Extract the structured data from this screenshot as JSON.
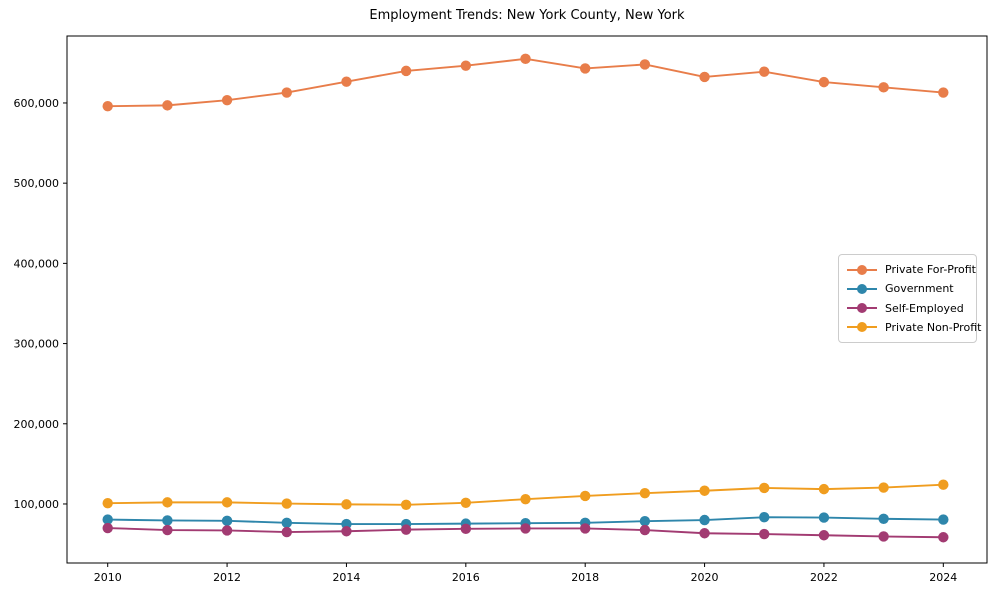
{
  "chart_data": {
    "type": "line",
    "title": "Employment Trends: New York County, New York",
    "xlabel": "",
    "ylabel": "",
    "x": [
      2010,
      2011,
      2012,
      2013,
      2014,
      2015,
      2016,
      2017,
      2018,
      2019,
      2020,
      2021,
      2022,
      2023,
      2024
    ],
    "series": [
      {
        "name": "Private For-Profit",
        "color": "#E87D4A",
        "values": [
          596000,
          597000,
          603500,
          613000,
          626500,
          640000,
          646500,
          655000,
          643000,
          648000,
          632500,
          639000,
          626000,
          619500,
          613000
        ]
      },
      {
        "name": "Government",
        "color": "#2E86AB",
        "values": [
          80500,
          79500,
          79000,
          76500,
          75000,
          75000,
          75500,
          76000,
          76500,
          78500,
          80000,
          83500,
          83000,
          81500,
          80500
        ]
      },
      {
        "name": "Self-Employed",
        "color": "#A23B72",
        "values": [
          70000,
          67500,
          67000,
          65000,
          66000,
          68000,
          69000,
          69500,
          69500,
          67500,
          63500,
          62500,
          61000,
          59500,
          58500
        ]
      },
      {
        "name": "Private Non-Profit",
        "color": "#F09D1F",
        "values": [
          101000,
          102000,
          102000,
          100500,
          99500,
          99000,
          101500,
          106000,
          110000,
          113500,
          116500,
          120000,
          118500,
          120500,
          124000
        ]
      }
    ],
    "x_ticks": [
      2010,
      2012,
      2014,
      2016,
      2018,
      2020,
      2022,
      2024
    ],
    "y_ticks": [
      100000,
      200000,
      300000,
      400000,
      500000,
      600000
    ],
    "xlim": [
      2009.318,
      2024.732
    ],
    "ylim": [
      26400,
      683500
    ],
    "grid": false,
    "legend_position": "center-right",
    "marker": "circle",
    "axis_color": "#000000"
  },
  "legend": {
    "items": [
      {
        "label": "Private For-Profit"
      },
      {
        "label": "Government"
      },
      {
        "label": "Self-Employed"
      },
      {
        "label": "Private Non-Profit"
      }
    ]
  }
}
